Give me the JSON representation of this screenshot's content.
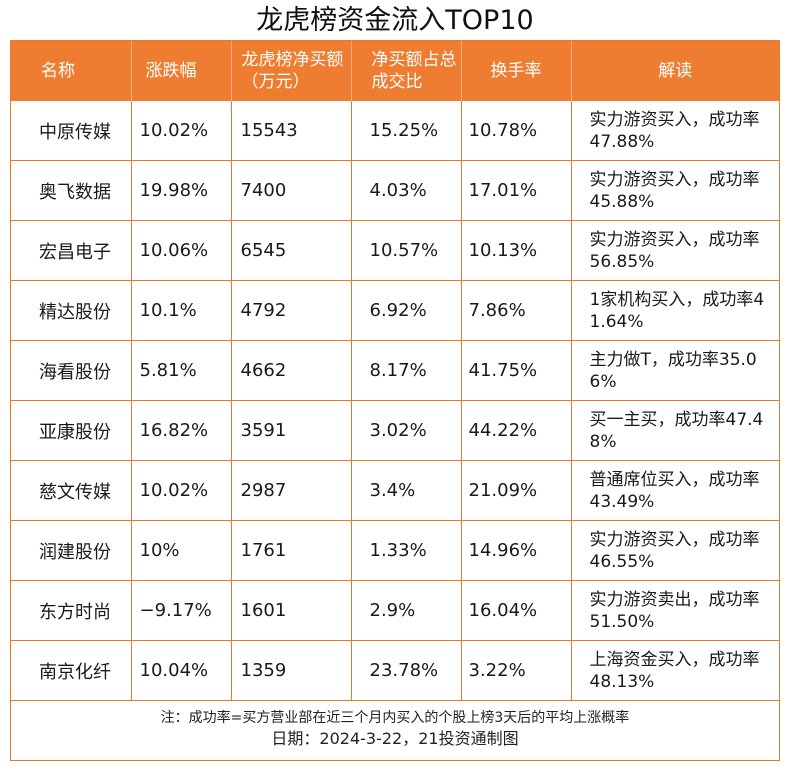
{
  "title": "龙虎榜资金流入TOP10",
  "headers": {
    "name": "名称",
    "change": "涨跌幅",
    "net_buy": "龙虎榜净买额（万元）",
    "ratio": "净买额占总成交比",
    "turnover": "换手率",
    "note": "解读"
  },
  "rows": [
    {
      "name": "中原传媒",
      "change": "10.02%",
      "net_buy": "15543",
      "ratio": "15.25%",
      "turnover": "10.78%",
      "note": "实力游资买入，成功率47.88%"
    },
    {
      "name": "奥飞数据",
      "change": "19.98%",
      "net_buy": "7400",
      "ratio": "4.03%",
      "turnover": "17.01%",
      "note": "实力游资买入，成功率45.88%"
    },
    {
      "name": "宏昌电子",
      "change": "10.06%",
      "net_buy": "6545",
      "ratio": "10.57%",
      "turnover": "10.13%",
      "note": "实力游资买入，成功率56.85%"
    },
    {
      "name": "精达股份",
      "change": "10.1%",
      "net_buy": "4792",
      "ratio": "6.92%",
      "turnover": "7.86%",
      "note": "1家机构买入，成功率41.64%"
    },
    {
      "name": "海看股份",
      "change": "5.81%",
      "net_buy": "4662",
      "ratio": "8.17%",
      "turnover": "41.75%",
      "note": "主力做T，成功率35.06%"
    },
    {
      "name": "亚康股份",
      "change": "16.82%",
      "net_buy": "3591",
      "ratio": "3.02%",
      "turnover": "44.22%",
      "note": "买一主买，成功率47.48%"
    },
    {
      "name": "慈文传媒",
      "change": "10.02%",
      "net_buy": "2987",
      "ratio": "3.4%",
      "turnover": "21.09%",
      "note": "普通席位买入，成功率43.49%"
    },
    {
      "name": "润建股份",
      "change": "10%",
      "net_buy": "1761",
      "ratio": "1.33%",
      "turnover": "14.96%",
      "note": "实力游资买入，成功率46.55%"
    },
    {
      "name": "东方时尚",
      "change": "−9.17%",
      "net_buy": "1601",
      "ratio": "2.9%",
      "turnover": "16.04%",
      "note": "实力游资卖出，成功率51.50%"
    },
    {
      "name": "南京化纤",
      "change": "10.04%",
      "net_buy": "1359",
      "ratio": "23.78%",
      "turnover": "3.22%",
      "note": "上海资金买入，成功率48.13%"
    }
  ],
  "footnote": "注：成功率=买方营业部在近三个月内买入的个股上榜3天后的平均上涨概率",
  "date_line": "日期：2024-3-22，21投资通制图",
  "colors": {
    "accent": "#ee7d31",
    "border": "#e8782a"
  }
}
